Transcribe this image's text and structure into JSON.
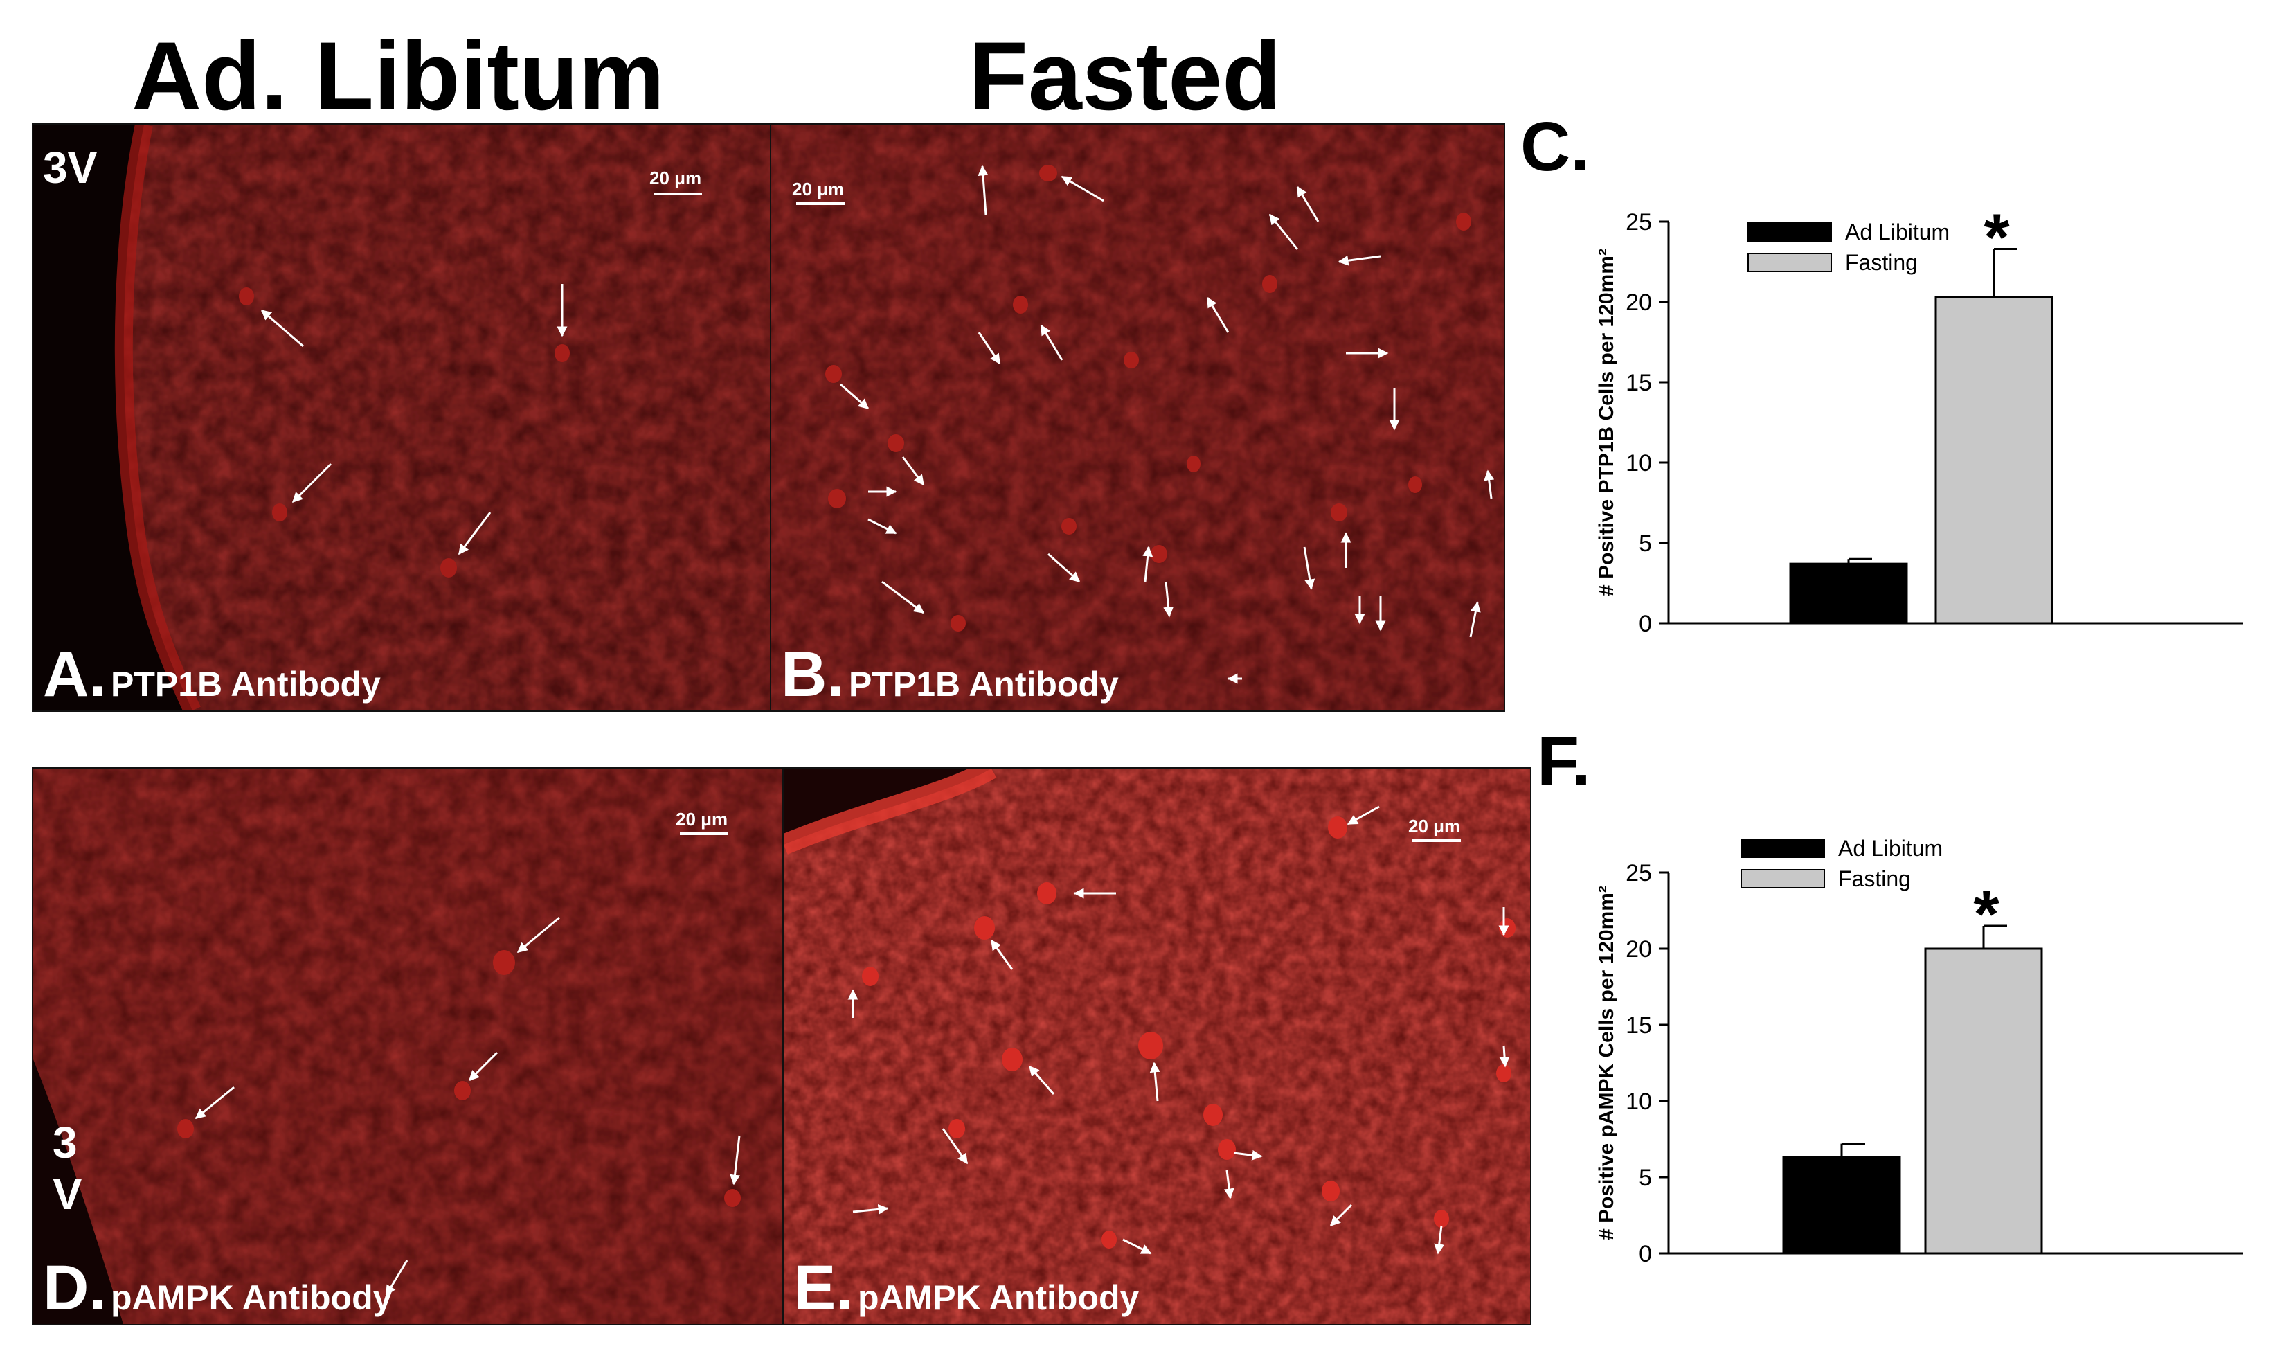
{
  "figure": {
    "col_left_title": "Ad. Libitum",
    "col_right_title": "Fasted",
    "panels": {
      "A": {
        "letter": "A.",
        "label": "PTP1B Antibody",
        "ventricle": "3V",
        "scale": "20 μm"
      },
      "B": {
        "letter": "B.",
        "label": "PTP1B Antibody",
        "scale": "20 μm"
      },
      "D": {
        "letter": "D.",
        "label": "pAMPK Antibody",
        "ventricle_line1": "3",
        "ventricle_line2": "V",
        "scale": "20 μm"
      },
      "E": {
        "letter": "E.",
        "label": "pAMPK Antibody",
        "scale": "20 μm"
      }
    },
    "colors": {
      "stain_red": "#c8201c",
      "tissue_dark": "#3a0808",
      "lumen": "#0a0202",
      "bar_adlib": "#000000",
      "bar_fasting": "#c8c8c8"
    }
  },
  "chart_data": [
    {
      "type": "bar",
      "panel": "C.",
      "categories": [
        "Ad Libitum",
        "Fasting"
      ],
      "values": [
        3.7,
        20.3
      ],
      "errors": [
        0.3,
        3.0
      ],
      "ylabel": "# Positive PTP1B Cells per 120mm²",
      "ylim": [
        0,
        25
      ],
      "yticks": [
        0,
        5,
        10,
        15,
        20,
        25
      ],
      "legend": [
        "Ad Libitum",
        "Fasting"
      ],
      "legend_position": "top",
      "annotation": "*"
    },
    {
      "type": "bar",
      "panel": "F.",
      "categories": [
        "Ad Libitum",
        "Fasting"
      ],
      "values": [
        6.3,
        20.0
      ],
      "errors": [
        0.9,
        1.5
      ],
      "ylabel": "# Positive pAMPK Cells per 120mm²",
      "ylim": [
        0,
        25
      ],
      "yticks": [
        0,
        5,
        10,
        15,
        20,
        25
      ],
      "legend": [
        "Ad Libitum",
        "Fasting"
      ],
      "legend_position": "top",
      "annotation": "*"
    }
  ]
}
